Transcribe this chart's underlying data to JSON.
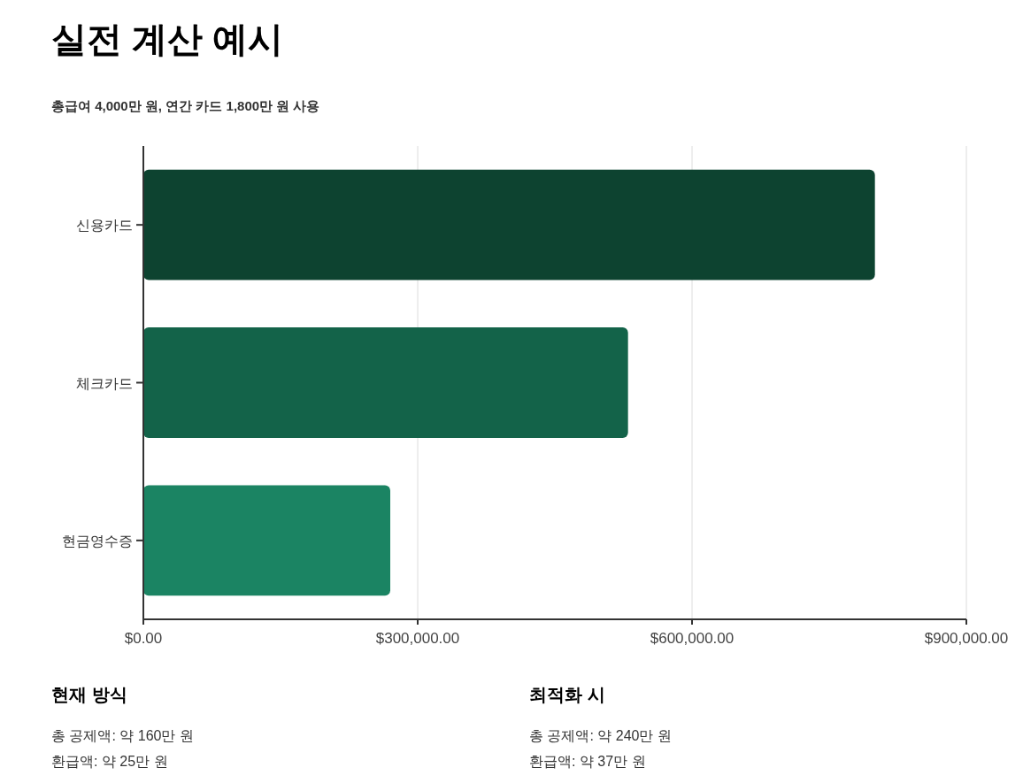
{
  "chart_data": {
    "type": "bar",
    "orientation": "horizontal",
    "title": "실전 계산 예시",
    "subtitle": "총급여 4,000만 원, 연간 카드 1,800만 원 사용",
    "categories": [
      "신용카드",
      "체크카드",
      "현금영수증"
    ],
    "values": [
      800000,
      530000,
      270000
    ],
    "colors": [
      "#0d4330",
      "#136349",
      "#1b8463"
    ],
    "xlim": [
      0,
      900000
    ],
    "xticks": [
      {
        "value": 0,
        "label": "$0.00"
      },
      {
        "value": 300000,
        "label": "$300,000.00"
      },
      {
        "value": 600000,
        "label": "$600,000.00"
      },
      {
        "value": 900000,
        "label": "$900,000.00"
      }
    ],
    "grid": "x",
    "annotations": [
      "현재 방식",
      "총 공제액: 약 160만 원",
      "환급액: 약 25만 원",
      "최적화 시",
      "총 공제액: 약 240만 원",
      "환급액: 약 37만 원"
    ]
  }
}
